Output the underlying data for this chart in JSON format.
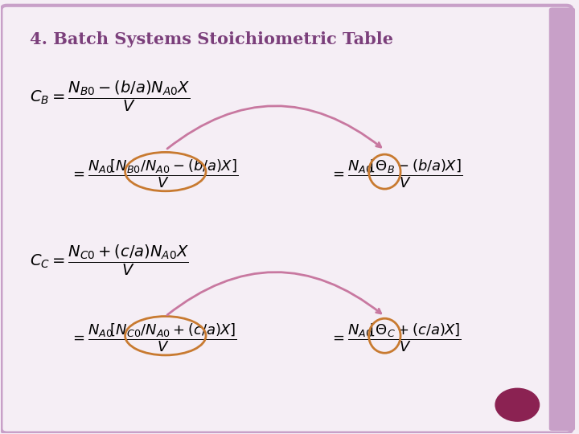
{
  "title": "4. Batch Systems Stoichiometric Table",
  "title_color": "#7B3F7B",
  "background_color": "#F5EEF5",
  "border_color": "#C8A0C8",
  "text_color": "#000000",
  "circle_color": "#C87A30",
  "arrow_color": "#C878A0",
  "dot_color": "#8B2252",
  "eq1_main": "$C_B = \\dfrac{N_{B0} - (b/a)N_{A0}X}{V}$",
  "eq1_left": "$= \\dfrac{N_{A0}\\left[N_{B0}/N_{A0} - (b/a)X\\right]}{V}$",
  "eq1_right": "$= \\dfrac{N_{A0}\\left[\\Theta_B - (b/a)X\\right]}{V}$",
  "eq2_main": "$C_C = \\dfrac{N_{C0} + (c/a)N_{A0}X}{V}$",
  "eq2_left": "$= \\dfrac{N_{A0}\\left[N_{C0}/N_{A0} + (c/a)X\\right]}{V}$",
  "eq2_right": "$= \\dfrac{N_{A0}\\left[\\Theta_C + (c/a)X\\right]}{V}$"
}
